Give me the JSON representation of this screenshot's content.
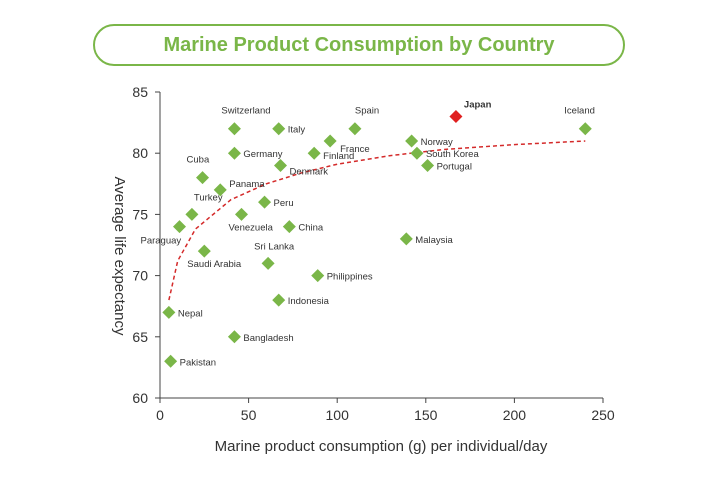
{
  "chart_data": {
    "type": "scatter",
    "title": "Marine Product Consumption by Country",
    "xlabel": "Marine product consumption (g) per individual/day",
    "ylabel": "Average life expectancy",
    "xlim": [
      0,
      250
    ],
    "ylim": [
      60,
      85
    ],
    "x_ticks": [
      "0",
      "50",
      "100",
      "150",
      "200",
      "250"
    ],
    "y_ticks": [
      "60",
      "65",
      "70",
      "75",
      "80",
      "85"
    ],
    "grid": false,
    "colors": {
      "point": "#7ab648",
      "highlight": "#e02020",
      "trend": "#d42a2a",
      "title": "#7ab648"
    },
    "points": [
      {
        "label": "Switzerland",
        "x": 42,
        "y": 82
      },
      {
        "label": "Italy",
        "x": 67,
        "y": 82
      },
      {
        "label": "Spain",
        "x": 110,
        "y": 82
      },
      {
        "label": "Japan",
        "x": 167,
        "y": 83,
        "highlight": true
      },
      {
        "label": "Iceland",
        "x": 240,
        "y": 82
      },
      {
        "label": "France",
        "x": 96,
        "y": 81
      },
      {
        "label": "Norway",
        "x": 142,
        "y": 81
      },
      {
        "label": "Germany",
        "x": 42,
        "y": 80
      },
      {
        "label": "Finland",
        "x": 87,
        "y": 80
      },
      {
        "label": "South Korea",
        "x": 145,
        "y": 80
      },
      {
        "label": "Denmark",
        "x": 68,
        "y": 79
      },
      {
        "label": "Portugal",
        "x": 151,
        "y": 79
      },
      {
        "label": "Cuba",
        "x": 24,
        "y": 78
      },
      {
        "label": "Panama",
        "x": 34,
        "y": 77
      },
      {
        "label": "Peru",
        "x": 59,
        "y": 76
      },
      {
        "label": "Turkey",
        "x": 18,
        "y": 75
      },
      {
        "label": "Venezuela",
        "x": 46,
        "y": 75
      },
      {
        "label": "Paraguay",
        "x": 11,
        "y": 74
      },
      {
        "label": "China",
        "x": 73,
        "y": 74
      },
      {
        "label": "Malaysia",
        "x": 139,
        "y": 73
      },
      {
        "label": "Saudi Arabia",
        "x": 25,
        "y": 72
      },
      {
        "label": "Sri Lanka",
        "x": 61,
        "y": 71
      },
      {
        "label": "Philippines",
        "x": 89,
        "y": 70
      },
      {
        "label": "Indonesia",
        "x": 67,
        "y": 68
      },
      {
        "label": "Nepal",
        "x": 5,
        "y": 67
      },
      {
        "label": "Bangladesh",
        "x": 42,
        "y": 65
      },
      {
        "label": "Pakistan",
        "x": 6,
        "y": 63
      }
    ],
    "trendline": {
      "style": "dashed",
      "points": [
        [
          5,
          68
        ],
        [
          10,
          71.2
        ],
        [
          20,
          73.8
        ],
        [
          40,
          76.2
        ],
        [
          60,
          77.5
        ],
        [
          80,
          78.4
        ],
        [
          100,
          79.1
        ],
        [
          130,
          79.8
        ],
        [
          160,
          80.3
        ],
        [
          200,
          80.7
        ],
        [
          240,
          81
        ]
      ]
    }
  }
}
